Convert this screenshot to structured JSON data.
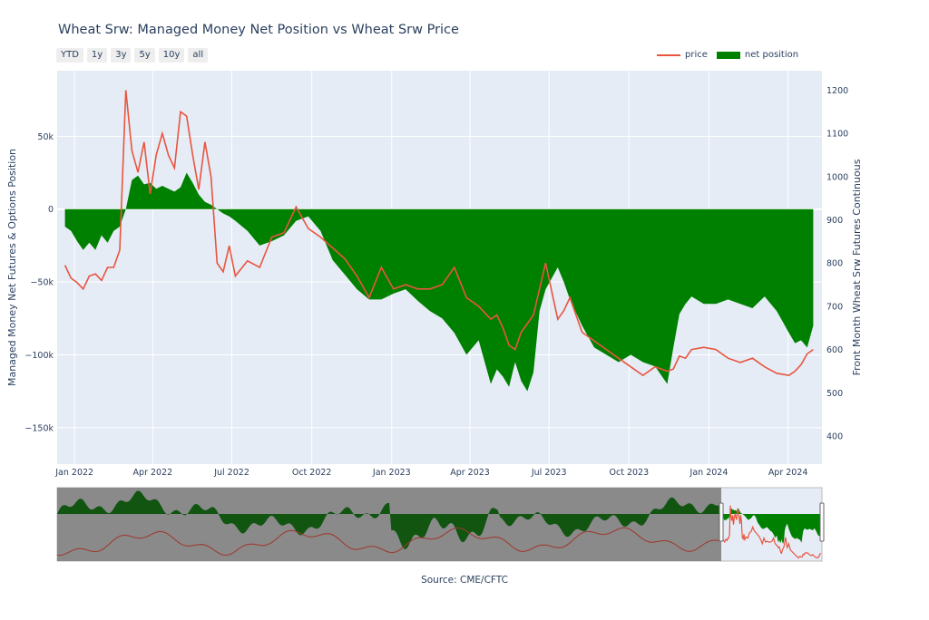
{
  "title": "Wheat Srw: Managed Money Net Position vs Wheat Srw Price",
  "range_buttons": [
    "YTD",
    "1y",
    "3y",
    "5y",
    "10y",
    "all"
  ],
  "legend": {
    "price": "price",
    "net_position": "net position"
  },
  "source": "Source: CME/CFTC",
  "colors": {
    "price": "#e8553f",
    "net_position": "#008000",
    "plot_bg": "#e5ecf6",
    "slider_mask": "#808080"
  },
  "chart_data": {
    "type": "area",
    "x_unit": "date",
    "x_ticks": [
      "Jan 2022",
      "Apr 2022",
      "Jul 2022",
      "Oct 2022",
      "Jan 2023",
      "Apr 2023",
      "Jul 2023",
      "Oct 2023",
      "Jan 2024",
      "Apr 2024"
    ],
    "y_left": {
      "label": "Managed Money Net Futures & Options Position",
      "range": [
        -175000,
        95000
      ],
      "ticks": [
        50000,
        0,
        -50000,
        -100000,
        -150000
      ],
      "tick_labels": [
        "50k",
        "0",
        "−50k",
        "−100k",
        "−150k"
      ]
    },
    "y_right": {
      "label": "Front Month Wheat Srw Futures Continuous",
      "range": [
        335,
        1245
      ],
      "ticks": [
        400,
        500,
        600,
        700,
        800,
        900,
        1000,
        1100,
        1200
      ]
    },
    "grid": true,
    "legend_position": "top-right",
    "series": [
      {
        "name": "net position",
        "axis": "left",
        "x": [
          "2021-12-21",
          "2021-12-28",
          "2022-01-04",
          "2022-01-11",
          "2022-01-18",
          "2022-01-25",
          "2022-02-01",
          "2022-02-08",
          "2022-02-15",
          "2022-02-22",
          "2022-03-01",
          "2022-03-08",
          "2022-03-15",
          "2022-03-22",
          "2022-03-29",
          "2022-04-05",
          "2022-04-12",
          "2022-04-19",
          "2022-04-26",
          "2022-05-03",
          "2022-05-10",
          "2022-05-17",
          "2022-05-24",
          "2022-05-31",
          "2022-06-07",
          "2022-06-14",
          "2022-06-21",
          "2022-06-28",
          "2022-07-05",
          "2022-07-19",
          "2022-08-02",
          "2022-08-16",
          "2022-08-30",
          "2022-09-13",
          "2022-09-27",
          "2022-10-11",
          "2022-10-25",
          "2022-11-08",
          "2022-11-22",
          "2022-12-06",
          "2022-12-20",
          "2023-01-03",
          "2023-01-17",
          "2023-01-31",
          "2023-02-14",
          "2023-02-28",
          "2023-03-14",
          "2023-03-28",
          "2023-04-11",
          "2023-04-25",
          "2023-05-02",
          "2023-05-09",
          "2023-05-16",
          "2023-05-23",
          "2023-05-30",
          "2023-06-06",
          "2023-06-13",
          "2023-06-20",
          "2023-06-27",
          "2023-07-11",
          "2023-07-18",
          "2023-07-25",
          "2023-08-08",
          "2023-08-22",
          "2023-09-05",
          "2023-09-19",
          "2023-10-03",
          "2023-10-17",
          "2023-10-31",
          "2023-11-14",
          "2023-11-21",
          "2023-11-28",
          "2023-12-05",
          "2023-12-12",
          "2023-12-26",
          "2024-01-09",
          "2024-01-23",
          "2024-02-06",
          "2024-02-20",
          "2024-03-05",
          "2024-03-19",
          "2024-04-02",
          "2024-04-09",
          "2024-04-16",
          "2024-04-23",
          "2024-04-30"
        ],
        "values": [
          -12000,
          -15000,
          -22000,
          -28000,
          -23000,
          -28000,
          -18000,
          -23000,
          -15000,
          -12000,
          0,
          20000,
          23000,
          17000,
          18000,
          14000,
          16000,
          14000,
          12000,
          15000,
          25000,
          18000,
          10000,
          5000,
          3000,
          0,
          -3000,
          -5000,
          -8000,
          -15000,
          -25000,
          -22000,
          -18000,
          -8000,
          -5000,
          -15000,
          -35000,
          -45000,
          -55000,
          -62000,
          -62000,
          -58000,
          -55000,
          -63000,
          -70000,
          -75000,
          -85000,
          -100000,
          -90000,
          -120000,
          -110000,
          -115000,
          -122000,
          -105000,
          -118000,
          -125000,
          -112000,
          -70000,
          -55000,
          -40000,
          -50000,
          -62000,
          -80000,
          -95000,
          -100000,
          -105000,
          -100000,
          -105000,
          -108000,
          -120000,
          -95000,
          -72000,
          -65000,
          -60000,
          -65000,
          -65000,
          -62000,
          -65000,
          -68000,
          -60000,
          -70000,
          -85000,
          -92000,
          -90000,
          -95000,
          -80000
        ]
      },
      {
        "name": "price",
        "axis": "right",
        "x": [
          "2021-12-21",
          "2021-12-28",
          "2022-01-04",
          "2022-01-11",
          "2022-01-18",
          "2022-01-25",
          "2022-02-01",
          "2022-02-08",
          "2022-02-15",
          "2022-02-22",
          "2022-03-01",
          "2022-03-08",
          "2022-03-15",
          "2022-03-22",
          "2022-03-29",
          "2022-04-05",
          "2022-04-12",
          "2022-04-19",
          "2022-04-26",
          "2022-05-03",
          "2022-05-10",
          "2022-05-17",
          "2022-05-24",
          "2022-05-31",
          "2022-06-07",
          "2022-06-14",
          "2022-06-21",
          "2022-06-28",
          "2022-07-05",
          "2022-07-19",
          "2022-08-02",
          "2022-08-16",
          "2022-08-30",
          "2022-09-13",
          "2022-09-27",
          "2022-10-11",
          "2022-10-25",
          "2022-11-08",
          "2022-11-22",
          "2022-12-06",
          "2022-12-20",
          "2023-01-03",
          "2023-01-17",
          "2023-01-31",
          "2023-02-14",
          "2023-02-28",
          "2023-03-14",
          "2023-03-28",
          "2023-04-11",
          "2023-04-25",
          "2023-05-02",
          "2023-05-09",
          "2023-05-16",
          "2023-05-23",
          "2023-05-30",
          "2023-06-06",
          "2023-06-13",
          "2023-06-20",
          "2023-06-27",
          "2023-07-11",
          "2023-07-18",
          "2023-07-25",
          "2023-08-08",
          "2023-08-22",
          "2023-09-05",
          "2023-09-19",
          "2023-10-03",
          "2023-10-17",
          "2023-10-31",
          "2023-11-14",
          "2023-11-21",
          "2023-11-28",
          "2023-12-05",
          "2023-12-12",
          "2023-12-26",
          "2024-01-09",
          "2024-01-23",
          "2024-02-06",
          "2024-02-20",
          "2024-03-05",
          "2024-03-19",
          "2024-04-02",
          "2024-04-09",
          "2024-04-16",
          "2024-04-23",
          "2024-04-30"
        ],
        "values": [
          795,
          765,
          755,
          740,
          770,
          775,
          760,
          790,
          790,
          830,
          1200,
          1060,
          1010,
          1080,
          960,
          1050,
          1100,
          1050,
          1020,
          1150,
          1140,
          1050,
          970,
          1080,
          1000,
          800,
          780,
          840,
          770,
          805,
          790,
          860,
          870,
          930,
          880,
          860,
          835,
          810,
          770,
          720,
          790,
          740,
          750,
          740,
          740,
          750,
          790,
          720,
          700,
          670,
          680,
          650,
          610,
          600,
          640,
          660,
          680,
          740,
          800,
          670,
          690,
          720,
          640,
          620,
          600,
          580,
          560,
          540,
          560,
          550,
          555,
          585,
          580,
          600,
          605,
          600,
          580,
          570,
          580,
          560,
          545,
          540,
          550,
          565,
          590,
          600
        ]
      }
    ]
  }
}
